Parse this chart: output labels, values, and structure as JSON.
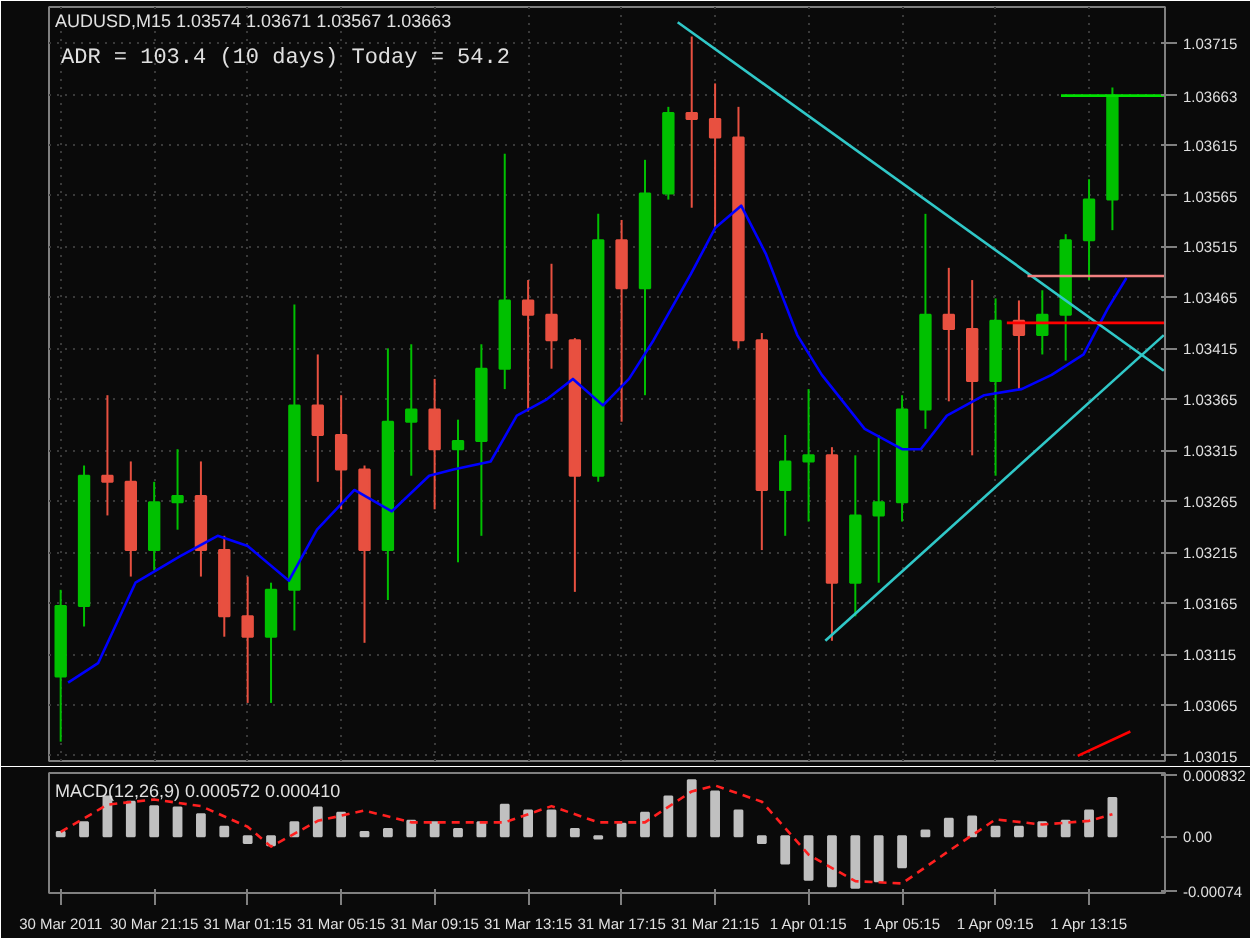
{
  "chart_data": [
    {
      "type": "candlestick",
      "title": "AUDUSD,M15 1.03574 1.03671 1.03567 1.03663",
      "annotations": [
        "ADR = 103.4  (10 days)      Today = 54.2"
      ],
      "x": [
        "2011-03-30T17:15",
        "2011-03-30T18:15",
        "2011-03-30T19:15",
        "2011-03-30T20:15",
        "2011-03-30T21:15",
        "2011-03-30T22:15",
        "2011-03-30T23:15",
        "2011-03-31T00:15",
        "2011-03-31T01:15",
        "2011-03-31T02:15",
        "2011-03-31T03:15",
        "2011-03-31T04:15",
        "2011-03-31T05:15",
        "2011-03-31T06:15",
        "2011-03-31T07:15",
        "2011-03-31T08:15",
        "2011-03-31T09:15",
        "2011-03-31T10:15",
        "2011-03-31T11:15",
        "2011-03-31T12:15",
        "2011-03-31T13:15",
        "2011-03-31T14:15",
        "2011-03-31T15:15",
        "2011-03-31T16:15",
        "2011-03-31T17:15",
        "2011-03-31T18:15",
        "2011-03-31T19:15",
        "2011-03-31T20:15",
        "2011-03-31T21:15",
        "2011-03-31T22:15",
        "2011-03-31T23:15",
        "2011-04-01T00:15",
        "2011-04-01T01:15",
        "2011-04-01T02:15",
        "2011-04-01T03:15",
        "2011-04-01T04:15",
        "2011-04-01T05:15",
        "2011-04-01T06:15",
        "2011-04-01T07:15",
        "2011-04-01T08:15",
        "2011-04-01T09:15",
        "2011-04-01T10:15",
        "2011-04-01T11:15",
        "2011-04-01T12:15",
        "2011-04-01T13:15",
        "2011-04-01T14:15"
      ],
      "ohlc": [
        [
          1.03093,
          1.03178,
          1.03029,
          1.03162
        ],
        [
          1.03162,
          1.033,
          1.03142,
          1.0329
        ],
        [
          1.0329,
          1.03369,
          1.03251,
          1.03284
        ],
        [
          1.03284,
          1.03304,
          1.03191,
          1.03217
        ],
        [
          1.03217,
          1.03284,
          1.03197,
          1.03264
        ],
        [
          1.03264,
          1.03316,
          1.03237,
          1.0327
        ],
        [
          1.0327,
          1.03304,
          1.03191,
          1.03217
        ],
        [
          1.03217,
          1.03231,
          1.03132,
          1.03152
        ],
        [
          1.03152,
          1.03191,
          1.03067,
          1.03132
        ],
        [
          1.03132,
          1.03185,
          1.03067,
          1.03178
        ],
        [
          1.03178,
          1.03458,
          1.03138,
          1.03359
        ],
        [
          1.03359,
          1.03409,
          1.03284,
          1.0333
        ],
        [
          1.0333,
          1.03369,
          1.03257,
          1.03296
        ],
        [
          1.03296,
          1.033,
          1.03126,
          1.03217
        ],
        [
          1.03217,
          1.03415,
          1.03168,
          1.03343
        ],
        [
          1.03343,
          1.03419,
          1.0329,
          1.03355
        ],
        [
          1.03355,
          1.03385,
          1.03257,
          1.03316
        ],
        [
          1.03316,
          1.03345,
          1.03205,
          1.03324
        ],
        [
          1.03324,
          1.03419,
          1.03231,
          1.03395
        ],
        [
          1.03395,
          1.03606,
          1.03375,
          1.03462
        ],
        [
          1.03462,
          1.03482,
          1.03353,
          1.03448
        ],
        [
          1.03448,
          1.03498,
          1.03395,
          1.03423
        ],
        [
          1.03423,
          1.03425,
          1.03176,
          1.0329
        ],
        [
          1.0329,
          1.03547,
          1.03284,
          1.03521
        ],
        [
          1.03521,
          1.03541,
          1.03343,
          1.03474
        ],
        [
          1.03474,
          1.036,
          1.03369,
          1.03567
        ],
        [
          1.03567,
          1.03652,
          1.03561,
          1.03646
        ],
        [
          1.03646,
          1.03721,
          1.03553,
          1.0364
        ],
        [
          1.0364,
          1.03675,
          1.03533,
          1.03622
        ],
        [
          1.03622,
          1.03652,
          1.03415,
          1.03423
        ],
        [
          1.03423,
          1.0343,
          1.03217,
          1.03276
        ],
        [
          1.03276,
          1.0333,
          1.03231,
          1.03304
        ],
        [
          1.03304,
          1.03375,
          1.03245,
          1.0331
        ],
        [
          1.0331,
          1.03318,
          1.03128,
          1.03185
        ],
        [
          1.03185,
          1.0331,
          1.03152,
          1.03251
        ],
        [
          1.03251,
          1.0333,
          1.03185,
          1.03264
        ],
        [
          1.03264,
          1.03369,
          1.03245,
          1.03355
        ],
        [
          1.03355,
          1.03547,
          1.03336,
          1.03448
        ],
        [
          1.03448,
          1.03494,
          1.03363,
          1.03434
        ],
        [
          1.03434,
          1.03482,
          1.0331,
          1.03383
        ],
        [
          1.03383,
          1.03464,
          1.0329,
          1.03442
        ],
        [
          1.03442,
          1.03462,
          1.03375,
          1.03428
        ],
        [
          1.03428,
          1.03472,
          1.03409,
          1.03448
        ],
        [
          1.03448,
          1.03527,
          1.03403,
          1.03521
        ],
        [
          1.03521,
          1.03581,
          1.03482,
          1.03561
        ],
        [
          1.03561,
          1.03671,
          1.03531,
          1.03663
        ]
      ],
      "xticks": [
        "2011-03-30T17:15",
        "2011-03-30T21:15",
        "2011-03-31T01:15",
        "2011-03-31T05:15",
        "2011-03-31T09:15",
        "2011-03-31T13:15",
        "2011-03-31T17:15",
        "2011-03-31T21:15",
        "2011-04-01T01:15",
        "2011-04-01T05:15",
        "2011-04-01T09:15",
        "2011-04-01T13:15"
      ],
      "colors": [
        "#00c000",
        "#00c000",
        "#e85040",
        "#e85040",
        "#00c000",
        "#00c000",
        "#e85040",
        "#e85040",
        "#e85040",
        "#00c000",
        "#00c000",
        "#e85040",
        "#e85040",
        "#e85040",
        "#00c000",
        "#00c000",
        "#e85040",
        "#00c000",
        "#00c000",
        "#00c000",
        "#e85040",
        "#e85040",
        "#e85040",
        "#00c000",
        "#e85040",
        "#00c000",
        "#00c000",
        "#e85040",
        "#e85040",
        "#e85040",
        "#e85040",
        "#00c000",
        "#00c000",
        "#e85040",
        "#00c000",
        "#00c000",
        "#00c000",
        "#00c000",
        "#e85040",
        "#e85040",
        "#00c000",
        "#e85040",
        "#00c000",
        "#00c000",
        "#00c000",
        "#00c000"
      ],
      "series": [
        {
          "type": "line",
          "color": "#0000ff",
          "x": [
            "2011-03-30T17:34",
            "2011-03-30T18:51",
            "2011-03-30T20:27",
            "2011-03-30T22:22",
            "2011-03-30T23:58",
            "2011-03-31T01:15",
            "2011-03-31T03:01",
            "2011-03-31T04:13",
            "2011-03-31T05:49",
            "2011-03-31T07:25",
            "2011-03-31T09:01",
            "2011-03-31T10:03",
            "2011-03-31T11:39",
            "2011-03-31T12:46",
            "2011-03-31T14:03",
            "2011-03-31T15:10",
            "2011-03-31T16:27",
            "2011-03-31T17:34",
            "2011-03-31T18:37",
            "2011-03-31T20:13",
            "2011-03-31T21:15",
            "2011-03-31T22:22",
            "2011-03-31T23:25",
            "2011-04-01T00:46",
            "2011-04-01T01:49",
            "2011-04-01T03:39",
            "2011-04-01T05:15",
            "2011-04-01T06:03",
            "2011-04-01T07:10",
            "2011-04-01T08:46",
            "2011-04-01T10:22",
            "2011-04-01T11:39",
            "2011-04-01T13:01",
            "2011-04-01T14:03",
            "2011-04-01T14:51"
          ],
          "values": [
            1.03087,
            1.03106,
            1.03185,
            1.03211,
            1.03231,
            1.03221,
            1.03187,
            1.03237,
            1.03276,
            1.03255,
            1.0329,
            1.03296,
            1.03304,
            1.03349,
            1.03365,
            1.03385,
            1.03359,
            1.03385,
            1.03423,
            1.03488,
            1.03533,
            1.03555,
            1.03508,
            1.03428,
            1.03389,
            1.03336,
            1.03316,
            1.03316,
            1.03349,
            1.03369,
            1.03375,
            1.03389,
            1.03409,
            1.03454,
            1.03484
          ]
        },
        {
          "type": "line",
          "color": "#30c8c8",
          "x": [
            "2011-03-31T19:39",
            "2011-04-01T16:27"
          ],
          "values": [
            1.03735,
            1.03393
          ]
        },
        {
          "type": "line",
          "color": "#30c8c8",
          "x": [
            "2011-04-01T01:58",
            "2011-04-01T16:27"
          ],
          "values": [
            1.03128,
            1.03428
          ]
        },
        {
          "type": "line",
          "color": "#00e000",
          "x": [
            "2011-04-01T12:03",
            "2011-04-01T16:30"
          ],
          "values": [
            1.03663,
            1.03663
          ]
        },
        {
          "type": "line",
          "color": "#f08080",
          "x": [
            "2011-04-01T10:37",
            "2011-04-01T16:30"
          ],
          "values": [
            1.03486,
            1.03486
          ]
        },
        {
          "type": "line",
          "color": "#ff0000",
          "x": [
            "2011-04-01T09:44",
            "2011-04-01T16:30"
          ],
          "values": [
            1.0344,
            1.0344
          ]
        },
        {
          "type": "line",
          "color": "#ff0000",
          "x": [
            "2011-04-01T12:46",
            "2011-04-01T15:01"
          ],
          "values": [
            1.03015,
            1.03039
          ]
        }
      ],
      "xlim": [
        "2011-03-30T16:45",
        "2011-04-01T16:30"
      ],
      "ylim": [
        1.0301,
        1.0375
      ],
      "yticks": [
        1.03015,
        1.03065,
        1.03115,
        1.03165,
        1.03215,
        1.03265,
        1.03315,
        1.03365,
        1.03415,
        1.03465,
        1.03515,
        1.03565,
        1.03615,
        {
          "value": 1.03663,
          "label": "1.03663"
        },
        1.03715
      ],
      "grid": true,
      "tick_labels": "y"
    },
    {
      "type": "bar",
      "title": "MACD(12,26,9) 0.000572 0.000410",
      "color": "#c0c0c0",
      "x": [
        "2011-03-30T17:15",
        "2011-03-30T18:15",
        "2011-03-30T19:15",
        "2011-03-30T20:15",
        "2011-03-30T21:15",
        "2011-03-30T22:15",
        "2011-03-30T23:15",
        "2011-03-31T00:15",
        "2011-03-31T01:15",
        "2011-03-31T02:15",
        "2011-03-31T03:15",
        "2011-03-31T04:15",
        "2011-03-31T05:15",
        "2011-03-31T06:15",
        "2011-03-31T07:15",
        "2011-03-31T08:15",
        "2011-03-31T09:15",
        "2011-03-31T10:15",
        "2011-03-31T11:15",
        "2011-03-31T12:15",
        "2011-03-31T13:15",
        "2011-03-31T14:15",
        "2011-03-31T15:15",
        "2011-03-31T16:15",
        "2011-03-31T17:15",
        "2011-03-31T18:15",
        "2011-03-31T19:15",
        "2011-03-31T20:15",
        "2011-03-31T21:15",
        "2011-03-31T22:15",
        "2011-03-31T23:15",
        "2011-04-01T00:15",
        "2011-04-01T01:15",
        "2011-04-01T02:15",
        "2011-04-01T03:15",
        "2011-04-01T04:15",
        "2011-04-01T05:15",
        "2011-04-01T06:15",
        "2011-04-01T07:15",
        "2011-04-01T08:15",
        "2011-04-01T09:15",
        "2011-04-01T10:15",
        "2011-04-01T11:15",
        "2011-04-01T12:15",
        "2011-04-01T13:15",
        "2011-04-01T14:15"
      ],
      "values": [
        6e-05,
        0.00019,
        0.00054,
        0.00047,
        0.00041,
        0.00039,
        0.0003,
        0.00013,
        -9e-05,
        -0.00012,
        0.00019,
        0.00039,
        0.00032,
        6e-05,
        0.0001,
        0.00021,
        0.00019,
        0.0001,
        0.00019,
        0.00043,
        0.00035,
        0.00035,
        0.0001,
        -3e-05,
        0.00017,
        0.00032,
        0.00054,
        0.00076,
        0.00061,
        0.00035,
        -9e-05,
        -0.00037,
        -0.00059,
        -0.00068,
        -0.0007,
        -0.00061,
        -0.00042,
        8e-05,
        0.00024,
        0.00027,
        0.00013,
        0.00013,
        0.00019,
        0.00021,
        0.00035,
        0.00052
      ],
      "series": [
        {
          "type": "line",
          "color": "#ff2020",
          "line_style": "dashed",
          "x": [
            "2011-03-30T17:15",
            "2011-03-30T19:15",
            "2011-03-30T21:15",
            "2011-03-30T23:15",
            "2011-03-31T01:15",
            "2011-03-31T02:15",
            "2011-03-31T04:15",
            "2011-03-31T06:15",
            "2011-03-31T08:15",
            "2011-03-31T10:15",
            "2011-03-31T12:15",
            "2011-03-31T14:15",
            "2011-03-31T16:15",
            "2011-03-31T18:15",
            "2011-03-31T20:15",
            "2011-03-31T21:15",
            "2011-03-31T23:15",
            "2011-04-01T01:15",
            "2011-04-01T03:15",
            "2011-04-01T05:15",
            "2011-04-01T07:15",
            "2011-04-01T09:15",
            "2011-04-01T11:15",
            "2011-04-01T13:15",
            "2011-04-01T14:15"
          ],
          "values": [
            6e-05,
            0.00043,
            0.0005,
            0.00041,
            0.00013,
            -0.00014,
            0.00021,
            0.00035,
            0.00019,
            0.00019,
            0.00019,
            0.00041,
            0.00019,
            0.00019,
            0.00061,
            0.00069,
            0.00047,
            -0.00025,
            -0.00061,
            -0.00064,
            -0.0002,
            0.00023,
            0.00016,
            0.00021,
            0.0003
          ]
        }
      ],
      "xlim": [
        "2011-03-30T16:45",
        "2011-04-01T16:30"
      ],
      "xticks": [
        {
          "value": "2011-03-30T17:15",
          "label": "30 Mar 2011"
        },
        {
          "value": "2011-03-30T21:15",
          "label": "30 Mar 21:15"
        },
        {
          "value": "2011-03-31T01:15",
          "label": "31 Mar 01:15"
        },
        {
          "value": "2011-03-31T05:15",
          "label": "31 Mar 05:15"
        },
        {
          "value": "2011-03-31T09:15",
          "label": "31 Mar 09:15"
        },
        {
          "value": "2011-03-31T13:15",
          "label": "31 Mar 13:15"
        },
        {
          "value": "2011-03-31T17:15",
          "label": "31 Mar 17:15"
        },
        {
          "value": "2011-03-31T21:15",
          "label": "31 Mar 21:15"
        },
        {
          "value": "2011-04-01T01:15",
          "label": "1 Apr 01:15"
        },
        {
          "value": "2011-04-01T05:15",
          "label": "1 Apr 05:15"
        },
        {
          "value": "2011-04-01T09:15",
          "label": "1 Apr 09:15"
        },
        {
          "value": "2011-04-01T13:15",
          "label": "1 Apr 13:15"
        }
      ],
      "ylim": [
        -0.00077,
        0.00086
      ],
      "yticks": [
        {
          "value": -0.00074,
          "label": "-0.00074"
        },
        {
          "value": 0,
          "label": "0.00"
        },
        0.000832
      ],
      "grid": false
    }
  ]
}
